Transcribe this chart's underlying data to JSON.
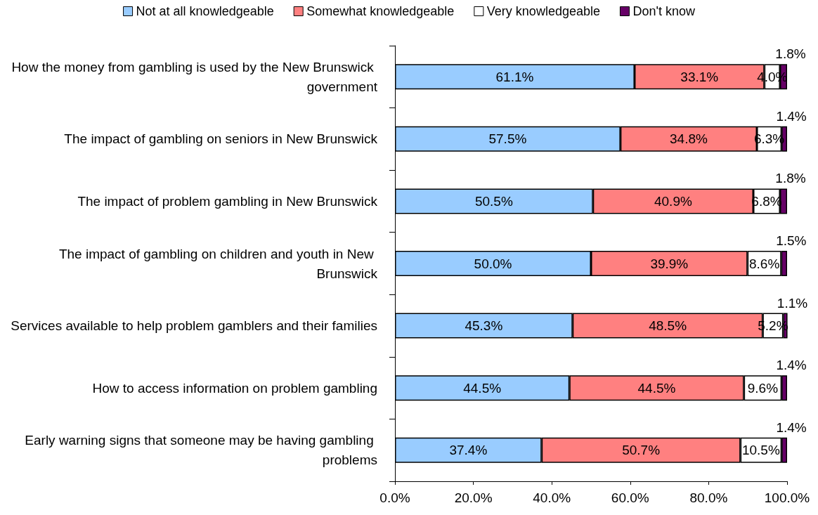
{
  "chart_data": {
    "type": "bar",
    "orientation": "horizontal",
    "stacked": true,
    "categories": [
      "How the money from gambling is used by the New Brunswick government",
      "The impact of gambling on seniors in New Brunswick",
      "The impact of problem gambling in New Brunswick",
      "The impact of gambling on children and youth in New Brunswick",
      "Services available to help problem gamblers and their families",
      "How to access information on problem gambling",
      "Early warning signs that someone may be having gambling problems"
    ],
    "series": [
      {
        "name": "Not at all knowledgeable",
        "color": "#99ccff",
        "values": [
          61.1,
          57.5,
          50.5,
          50.0,
          45.3,
          44.5,
          37.4
        ],
        "value_labels": [
          "61.1%",
          "57.5%",
          "50.5%",
          "50.0%",
          "45.3%",
          "44.5%",
          "37.4%"
        ]
      },
      {
        "name": "Somewhat knowledgeable",
        "color": "#ff8080",
        "values": [
          33.1,
          34.8,
          40.9,
          39.9,
          48.5,
          44.5,
          50.7
        ],
        "value_labels": [
          "33.1%",
          "34.8%",
          "40.9%",
          "39.9%",
          "48.5%",
          "44.5%",
          "50.7%"
        ]
      },
      {
        "name": "Very knowledgeable",
        "color": "#ffffff",
        "values": [
          4.0,
          6.3,
          6.8,
          8.6,
          5.2,
          9.6,
          10.5
        ],
        "value_labels": [
          "4.0%",
          "6.3%",
          "6.8%",
          "8.6%",
          "5.2%",
          "9.6%",
          "10.5%"
        ]
      },
      {
        "name": "Don't know",
        "color": "#660066",
        "values": [
          1.8,
          1.4,
          1.8,
          1.5,
          1.1,
          1.4,
          1.4
        ],
        "value_labels": [
          "1.8%",
          "1.4%",
          "1.8%",
          "1.5%",
          "1.1%",
          "1.4%",
          "1.4%"
        ]
      }
    ],
    "xlim": [
      0,
      100
    ],
    "xticks": [
      {
        "value": 0,
        "label": "0.0%"
      },
      {
        "value": 20,
        "label": "20.0%"
      },
      {
        "value": 40,
        "label": "40.0%"
      },
      {
        "value": 60,
        "label": "60.0%"
      },
      {
        "value": 80,
        "label": "80.0%"
      },
      {
        "value": 100,
        "label": "100.0%"
      }
    ],
    "grid": false,
    "legend": "top"
  }
}
